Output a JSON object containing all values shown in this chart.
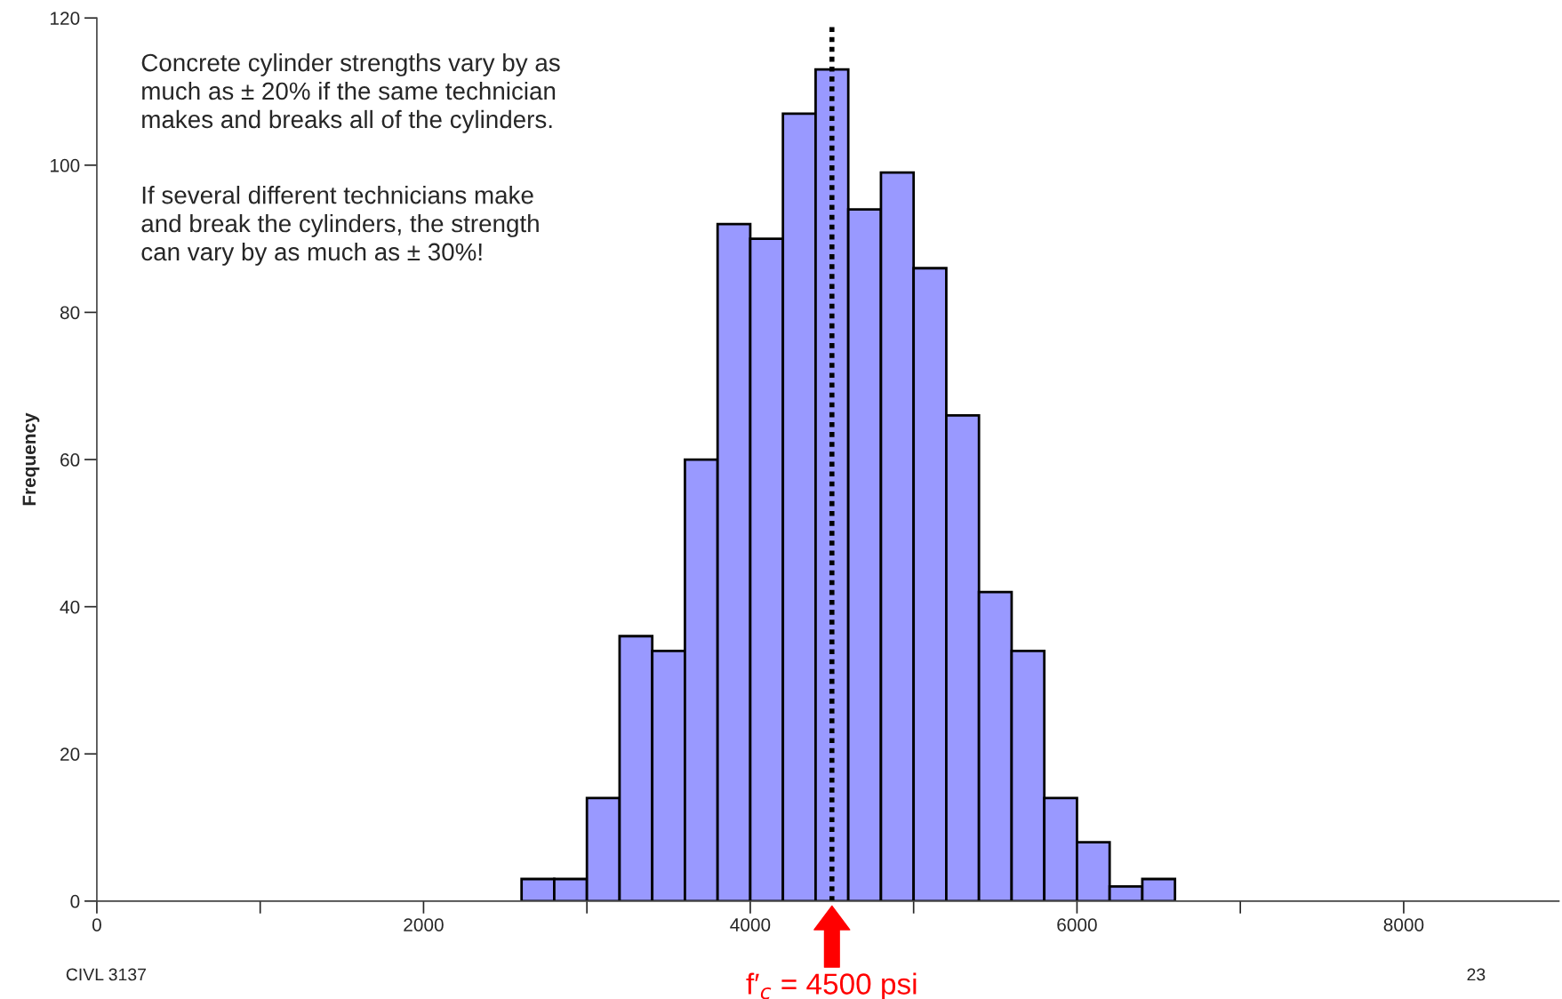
{
  "chart_data": {
    "type": "histogram",
    "ylabel": "Frequency",
    "bins": [
      2600,
      2800,
      3000,
      3200,
      3400,
      3600,
      3800,
      4000,
      4200,
      4400,
      4600,
      4800,
      5000,
      5200,
      5400,
      5600,
      5800,
      6000,
      6200,
      6400,
      6600
    ],
    "values": [
      3,
      3,
      14,
      36,
      34,
      60,
      92,
      90,
      107,
      113,
      94,
      99,
      86,
      66,
      42,
      34,
      14,
      8,
      2,
      3
    ],
    "color": "#9999ff",
    "xlim": [
      0,
      8950
    ],
    "xticks": [
      0,
      {
        "value": 1000,
        "label": null
      },
      2000,
      {
        "value": 3000,
        "label": null
      },
      4000,
      {
        "value": 5000,
        "label": null
      },
      6000,
      {
        "value": 7000,
        "label": null
      },
      8000
    ],
    "ylim": [
      0,
      120
    ],
    "yticks": [
      0,
      20,
      40,
      60,
      80,
      100,
      120
    ],
    "grid": false,
    "ref_lines": [
      {
        "axis": "x",
        "value": 4500,
        "label": "f′$_{c}$ = 4500 psi",
        "color": "#000000",
        "line_style": "dotted"
      }
    ],
    "annotations": [
      "Concrete cylinder strengths vary by as\nmuch as ± 20% if the same technician\nmakes and breaks all of the cylinders.",
      "If several different technicians make\nand break the cylinders, the strength\ncan vary by as much as ± 30%!",
      "CIVL 3137",
      "23"
    ]
  }
}
